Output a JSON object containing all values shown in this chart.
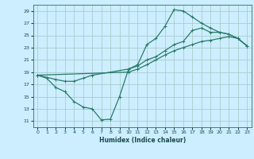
{
  "title": "",
  "xlabel": "Humidex (Indice chaleur)",
  "bg_color": "#cceeff",
  "grid_color": "#aacccc",
  "line_color": "#2a7a6a",
  "xlim": [
    -0.5,
    23.5
  ],
  "ylim": [
    10,
    30
  ],
  "xticks": [
    0,
    1,
    2,
    3,
    4,
    5,
    6,
    7,
    8,
    9,
    10,
    11,
    12,
    13,
    14,
    15,
    16,
    17,
    18,
    19,
    20,
    21,
    22,
    23
  ],
  "yticks": [
    11,
    13,
    15,
    17,
    19,
    21,
    23,
    25,
    27,
    29
  ],
  "curve1_x": [
    0,
    1,
    2,
    3,
    4,
    5,
    6,
    7,
    8,
    9,
    10,
    11,
    12,
    13,
    14,
    15,
    16,
    17,
    18,
    19,
    20,
    21,
    22,
    23
  ],
  "curve1_y": [
    18.5,
    18.0,
    16.5,
    15.8,
    14.2,
    13.3,
    13.0,
    11.2,
    11.3,
    15.0,
    19.5,
    20.2,
    23.5,
    24.5,
    26.5,
    29.2,
    29.0,
    28.0,
    27.0,
    26.2,
    25.5,
    25.2,
    24.5,
    23.3
  ],
  "curve2_x": [
    0,
    2,
    3,
    4,
    5,
    6,
    10,
    11,
    12,
    13,
    14,
    15,
    16,
    17,
    18,
    19,
    20,
    21,
    22,
    23
  ],
  "curve2_y": [
    18.5,
    17.8,
    17.5,
    17.5,
    18.0,
    18.5,
    19.5,
    20.0,
    21.0,
    21.5,
    22.5,
    23.5,
    24.0,
    25.8,
    26.2,
    25.5,
    25.5,
    25.2,
    24.5,
    23.3
  ],
  "curve3_x": [
    0,
    10,
    11,
    12,
    13,
    14,
    15,
    16,
    17,
    18,
    19,
    20,
    21,
    22,
    23
  ],
  "curve3_y": [
    18.5,
    19.0,
    19.5,
    20.2,
    21.0,
    21.8,
    22.5,
    23.0,
    23.5,
    24.0,
    24.2,
    24.5,
    24.8,
    24.5,
    23.3
  ]
}
